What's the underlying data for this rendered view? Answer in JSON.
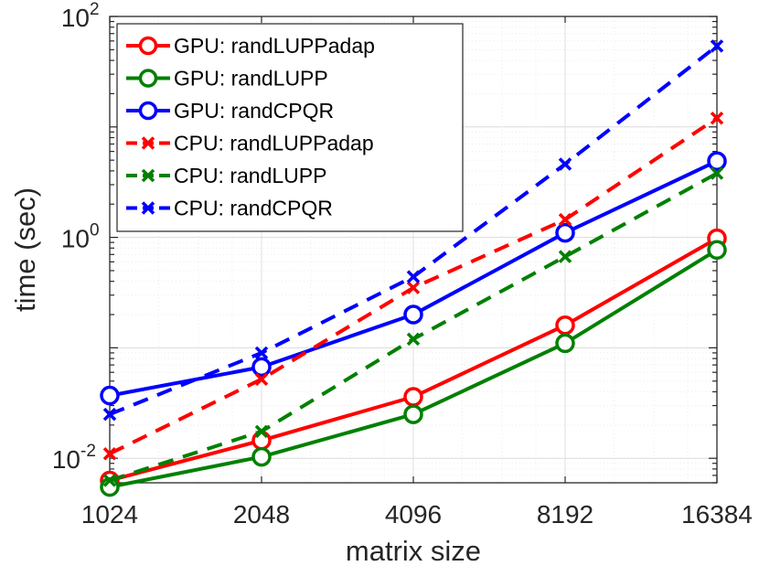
{
  "chart_data": {
    "type": "line",
    "title": "",
    "xlabel": "matrix size",
    "ylabel": "time (sec)",
    "xscale": "log2",
    "yscale": "log10",
    "xlim": [
      1024,
      16384
    ],
    "ylim": [
      0.006,
      100
    ],
    "grid": true,
    "legend_position": "top-left",
    "x": [
      1024,
      2048,
      4096,
      8192,
      16384
    ],
    "xticks": [
      {
        "value": 1024,
        "label": "1024"
      },
      {
        "value": 2048,
        "label": "2048"
      },
      {
        "value": 4096,
        "label": "4096"
      },
      {
        "value": 8192,
        "label": "8192"
      },
      {
        "value": 16384,
        "label": "16384"
      }
    ],
    "yticks": [
      {
        "value": 0.01,
        "base": "10",
        "exp": "-2"
      },
      {
        "value": 1,
        "base": "10",
        "exp": "0"
      },
      {
        "value": 100,
        "base": "10",
        "exp": "2"
      }
    ],
    "series": [
      {
        "name": "GPU: randLUPPadap",
        "color": "#ff0000",
        "line": "solid",
        "marker": "circle",
        "values": [
          0.0063,
          0.0145,
          0.036,
          0.16,
          0.98
        ]
      },
      {
        "name": "GPU: randLUPP",
        "color": "#008000",
        "line": "solid",
        "marker": "circle",
        "values": [
          0.0055,
          0.0103,
          0.025,
          0.11,
          0.77
        ]
      },
      {
        "name": "GPU: randCPQR",
        "color": "#0000ff",
        "line": "solid",
        "marker": "circle",
        "values": [
          0.037,
          0.067,
          0.2,
          1.1,
          4.9
        ]
      },
      {
        "name": "CPU: randLUPPadap",
        "color": "#ff0000",
        "line": "dashed",
        "marker": "x",
        "values": [
          0.011,
          0.052,
          0.35,
          1.45,
          12.0
        ]
      },
      {
        "name": "CPU: randLUPP",
        "color": "#008000",
        "line": "dashed",
        "marker": "x",
        "values": [
          0.0063,
          0.0175,
          0.12,
          0.67,
          3.8
        ]
      },
      {
        "name": "CPU: randCPQR",
        "color": "#0000ff",
        "line": "dashed",
        "marker": "x",
        "values": [
          0.025,
          0.09,
          0.44,
          4.6,
          54.0
        ]
      }
    ]
  }
}
